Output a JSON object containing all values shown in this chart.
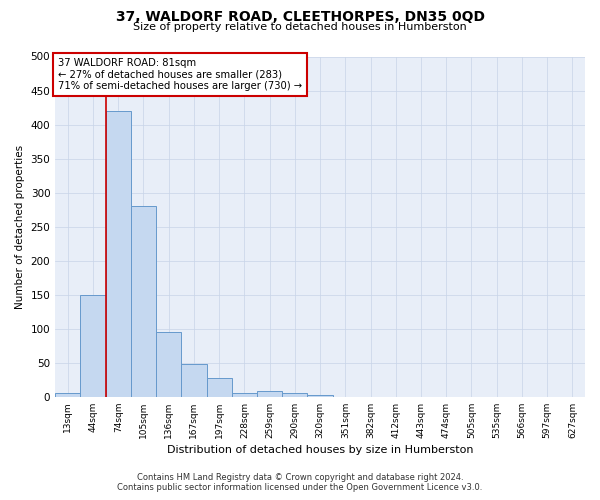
{
  "title": "37, WALDORF ROAD, CLEETHORPES, DN35 0QD",
  "subtitle": "Size of property relative to detached houses in Humberston",
  "xlabel": "Distribution of detached houses by size in Humberston",
  "ylabel": "Number of detached properties",
  "categories": [
    "13sqm",
    "44sqm",
    "74sqm",
    "105sqm",
    "136sqm",
    "167sqm",
    "197sqm",
    "228sqm",
    "259sqm",
    "290sqm",
    "320sqm",
    "351sqm",
    "382sqm",
    "412sqm",
    "443sqm",
    "474sqm",
    "505sqm",
    "535sqm",
    "566sqm",
    "597sqm",
    "627sqm"
  ],
  "bar_heights": [
    5,
    150,
    420,
    280,
    95,
    48,
    27,
    6,
    9,
    6,
    3,
    0,
    0,
    0,
    0,
    0,
    0,
    0,
    0,
    0,
    0
  ],
  "bar_color": "#c5d8f0",
  "bar_edge_color": "#6699cc",
  "annotation_text": "37 WALDORF ROAD: 81sqm\n← 27% of detached houses are smaller (283)\n71% of semi-detached houses are larger (730) →",
  "annotation_box_color": "#ffffff",
  "annotation_box_edge_color": "#cc0000",
  "red_line_color": "#cc0000",
  "ylim": [
    0,
    500
  ],
  "yticks": [
    0,
    50,
    100,
    150,
    200,
    250,
    300,
    350,
    400,
    450,
    500
  ],
  "grid_color": "#c8d4e8",
  "background_color": "#e8eef8",
  "footer_line1": "Contains HM Land Registry data © Crown copyright and database right 2024.",
  "footer_line2": "Contains public sector information licensed under the Open Government Licence v3.0."
}
